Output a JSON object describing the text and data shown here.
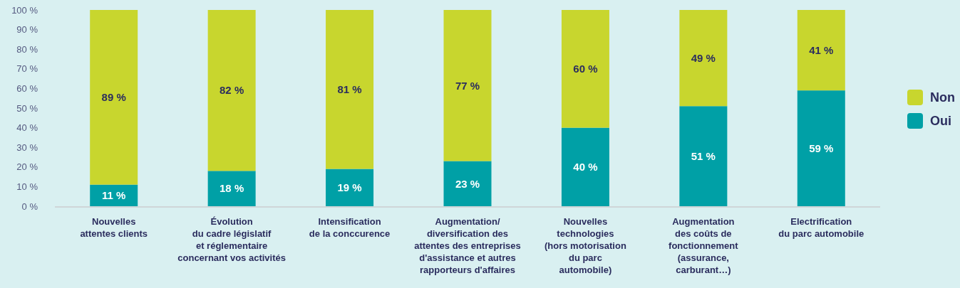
{
  "chart_data": {
    "type": "bar",
    "stacked": true,
    "legend": "right",
    "categories": [
      "Nouvelles\nattentes clients",
      "Évolution\ndu cadre législatif\net réglementaire\nconcernant vos activités",
      "Intensification\nde la conccurence",
      "Augmentation/\ndiversification des\nattentes des entreprises\nd'assistance et autres\nrapporteurs d'affaires",
      "Nouvelles\ntechnologies\n(hors motorisation\ndu parc\nautomobile)",
      "Augmentation\ndes coûts de\nfonctionnement\n(assurance,\ncarburant…)",
      "Electrification\ndu parc automobile"
    ],
    "series": [
      {
        "name": "Oui",
        "color": "#00a0a6",
        "values": [
          11,
          18,
          19,
          23,
          40,
          51,
          59
        ],
        "value_labels": [
          "11 %",
          "18 %",
          "19 %",
          "23 %",
          "40 %",
          "51 %",
          "59 %"
        ]
      },
      {
        "name": "Non",
        "color": "#c8d62e",
        "values": [
          89,
          82,
          81,
          77,
          60,
          49,
          41
        ],
        "value_labels": [
          "89 %",
          "82 %",
          "81 %",
          "77 %",
          "60 %",
          "49 %",
          "41 %"
        ]
      }
    ],
    "ylim": [
      0,
      100
    ],
    "yticks": [
      {
        "value": 0,
        "label": "0 %"
      },
      {
        "value": 10,
        "label": "10 %"
      },
      {
        "value": 20,
        "label": "20 %"
      },
      {
        "value": 30,
        "label": "30 %"
      },
      {
        "value": 40,
        "label": "40 %"
      },
      {
        "value": 50,
        "label": "50 %"
      },
      {
        "value": 60,
        "label": "60 %"
      },
      {
        "value": 70,
        "label": "70 %"
      },
      {
        "value": 80,
        "label": "80 %"
      },
      {
        "value": 90,
        "label": "90 %"
      },
      {
        "value": 100,
        "label": "100 %"
      }
    ]
  }
}
